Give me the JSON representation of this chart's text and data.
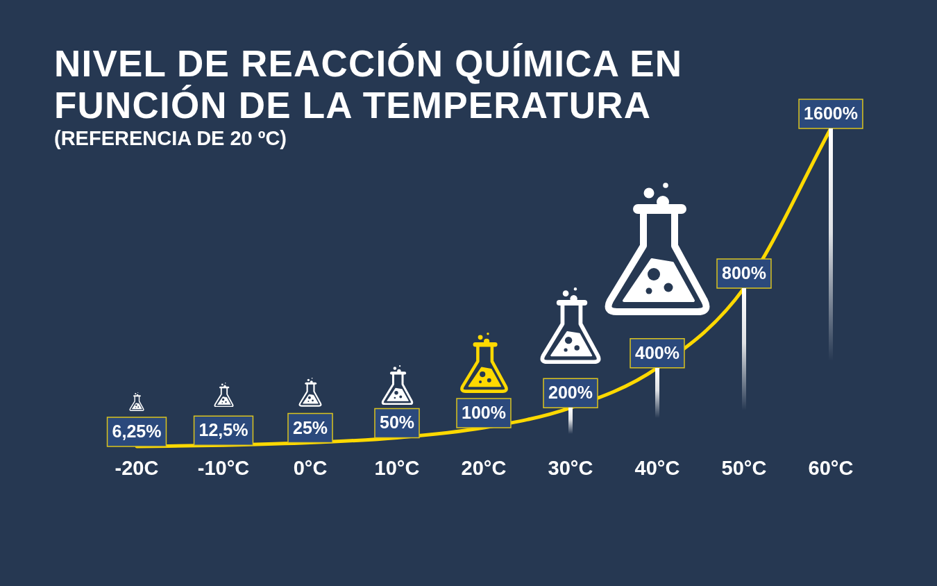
{
  "chart_data": {
    "type": "line",
    "title": "NIVEL DE REACCIÓN QUÍMICA EN FUNCIÓN DE LA TEMPERATURA",
    "subtitle": "(REFERENCIA DE 20 ºC)",
    "categories": [
      "-20C",
      "-10°C",
      "0°C",
      "10°C",
      "20°C",
      "30°C",
      "40°C",
      "50°C",
      "60°C"
    ],
    "values": [
      6.25,
      12.5,
      25,
      50,
      100,
      200,
      400,
      800,
      1600
    ],
    "value_labels": [
      "6,25%",
      "12,5%",
      "25%",
      "50%",
      "100%",
      "200%",
      "400%",
      "800%",
      "1600%"
    ],
    "color": "#ffd900",
    "tick_labels": "x",
    "marker": "none"
  }
}
